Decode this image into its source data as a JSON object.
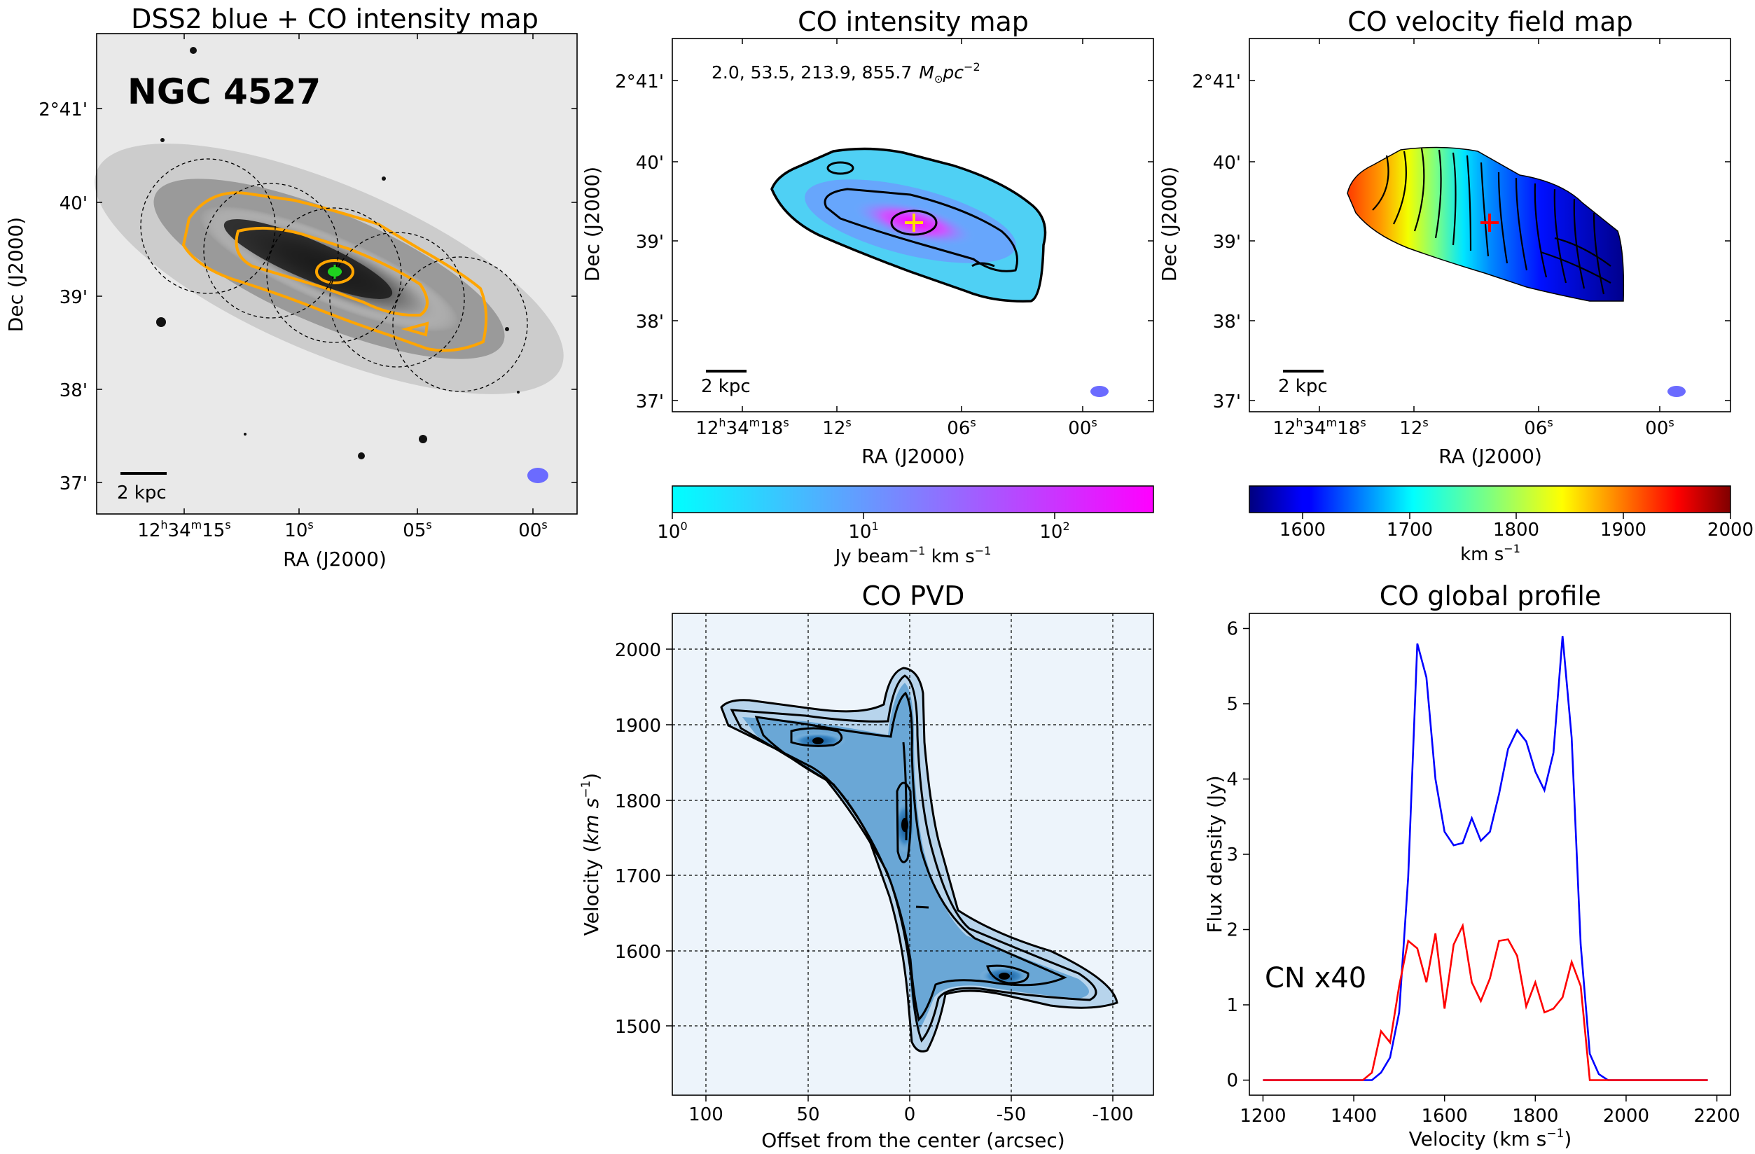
{
  "figure": {
    "galaxy_name": "NGC 4527",
    "panels": {
      "dss": {
        "title": "DSS2 blue + CO intensity map",
        "xlabel": "RA (J2000)",
        "ylabel": "Dec (J2000)",
        "xticks": [
          {
            "base": "12",
            "h": "h",
            "mid": "34",
            "m": "m",
            "rest": "15",
            "s": "s"
          },
          {
            "base": "10",
            "s": "s"
          },
          {
            "base": "05",
            "s": "s"
          },
          {
            "base": "00",
            "s": "s"
          }
        ],
        "yticks": [
          "2°41'",
          "40'",
          "39'",
          "38'",
          "37'"
        ],
        "scalebar": "2 kpc"
      },
      "mom0": {
        "title": "CO intensity map",
        "contour_levels": "2.0, 53.5, 213.9, 855.7",
        "unit_base": "M",
        "unit_sub": "⊙",
        "unit_mid": "pc",
        "unit_sup": "−2",
        "xlabel": "RA (J2000)",
        "ylabel": "Dec (J2000)",
        "xticks": [
          {
            "base": "12",
            "h": "h",
            "mid": "34",
            "m": "m",
            "rest": "18",
            "s": "s"
          },
          {
            "base": "12",
            "s": "s"
          },
          {
            "base": "06",
            "s": "s"
          },
          {
            "base": "00",
            "s": "s"
          }
        ],
        "yticks": [
          "2°41'",
          "40'",
          "39'",
          "38'",
          "37'"
        ],
        "scalebar": "2 kpc",
        "colorbar": {
          "ticks": [
            {
              "base": "10",
              "exp": "0"
            },
            {
              "base": "10",
              "exp": "1"
            },
            {
              "base": "10",
              "exp": "2"
            }
          ],
          "label_a": "Jy beam",
          "label_sup": "−1",
          "label_b": " km s",
          "label_sup2": "−1",
          "colors": [
            "#00ffff",
            "#ff00ff"
          ]
        }
      },
      "mom1": {
        "title": "CO velocity field map",
        "xlabel": "RA (J2000)",
        "ylabel": "Dec (J2000)",
        "xticks": [
          {
            "base": "12",
            "h": "h",
            "mid": "34",
            "m": "m",
            "rest": "18",
            "s": "s"
          },
          {
            "base": "12",
            "s": "s"
          },
          {
            "base": "06",
            "s": "s"
          },
          {
            "base": "00",
            "s": "s"
          }
        ],
        "yticks": [
          "2°41'",
          "40'",
          "39'",
          "38'",
          "37'"
        ],
        "scalebar": "2 kpc",
        "colorbar": {
          "ticks": [
            "1600",
            "1700",
            "1800",
            "1900",
            "2000"
          ],
          "label_a": "km s",
          "label_sup": "−1"
        }
      },
      "pvd": {
        "title": "CO PVD",
        "xlabel": "Offset from the center (arcsec)",
        "ylabel_a": "Velocity (",
        "ylabel_b": "km s",
        "ylabel_sup": "−1",
        "ylabel_c": ")",
        "xticks": [
          "100",
          "50",
          "0",
          "-50",
          "-100"
        ],
        "yticks": [
          "2000",
          "1900",
          "1800",
          "1700",
          "1600",
          "1500"
        ]
      },
      "profile": {
        "title": "CO global profile",
        "xlabel_a": "Velocity (km s",
        "xlabel_sup": "−1",
        "xlabel_b": ")",
        "ylabel": "Flux density (Jy)",
        "annotation": "CN x40",
        "xticks": [
          "1200",
          "1400",
          "1600",
          "1800",
          "2000",
          "2200"
        ],
        "yticks": [
          "0",
          "1",
          "2",
          "3",
          "4",
          "5",
          "6"
        ],
        "co_color": "#0000ff",
        "cn_color": "#ff0000"
      }
    }
  },
  "chart_data": [
    {
      "type": "line",
      "title": "CO global profile",
      "xlabel": "Velocity (km s^-1)",
      "ylabel": "Flux density (Jy)",
      "xlim": [
        1170,
        2230
      ],
      "ylim": [
        -0.2,
        6.2
      ],
      "series": [
        {
          "name": "CO",
          "color": "#0000ff",
          "x": [
            1200,
            1220,
            1240,
            1260,
            1280,
            1300,
            1320,
            1340,
            1360,
            1380,
            1400,
            1420,
            1440,
            1460,
            1480,
            1500,
            1520,
            1540,
            1560,
            1580,
            1600,
            1620,
            1640,
            1660,
            1680,
            1700,
            1720,
            1740,
            1760,
            1780,
            1800,
            1820,
            1840,
            1860,
            1880,
            1900,
            1920,
            1940,
            1960,
            1980,
            2000,
            2020,
            2040,
            2060,
            2080,
            2100,
            2120,
            2140,
            2160,
            2180
          ],
          "values": [
            0,
            0,
            0,
            0,
            0,
            0,
            0,
            0,
            0,
            0,
            0,
            0,
            0,
            0.1,
            0.3,
            0.9,
            2.7,
            5.8,
            5.35,
            4.0,
            3.3,
            3.12,
            3.15,
            3.48,
            3.18,
            3.3,
            3.8,
            4.4,
            4.65,
            4.5,
            4.1,
            3.85,
            4.35,
            5.9,
            4.55,
            1.8,
            0.35,
            0.08,
            0.0,
            0,
            0,
            0,
            0,
            0,
            0,
            0,
            0,
            0,
            0,
            0
          ]
        },
        {
          "name": "CN x40",
          "color": "#ff0000",
          "x": [
            1200,
            1220,
            1240,
            1260,
            1280,
            1300,
            1320,
            1340,
            1360,
            1380,
            1400,
            1420,
            1440,
            1460,
            1480,
            1500,
            1520,
            1540,
            1560,
            1580,
            1600,
            1620,
            1640,
            1660,
            1680,
            1700,
            1720,
            1740,
            1760,
            1780,
            1800,
            1820,
            1840,
            1860,
            1880,
            1900,
            1920,
            1940,
            1960,
            1980,
            2000,
            2020,
            2040,
            2060,
            2080,
            2100,
            2120,
            2140,
            2160,
            2180
          ],
          "values": [
            0,
            0,
            0,
            0,
            0,
            0,
            0,
            0,
            0,
            0,
            0,
            0,
            0.1,
            0.65,
            0.5,
            1.25,
            1.85,
            1.75,
            1.3,
            1.95,
            0.95,
            1.8,
            2.05,
            1.3,
            1.05,
            1.35,
            1.85,
            1.87,
            1.65,
            0.98,
            1.3,
            0.9,
            0.95,
            1.1,
            1.57,
            1.25,
            0.0,
            0.0,
            0,
            0,
            0,
            0,
            0,
            0,
            0,
            0,
            0,
            0,
            0,
            0
          ]
        }
      ]
    },
    {
      "type": "heatmap",
      "title": "CO PVD",
      "xlabel": "Offset from the center (arcsec)",
      "ylabel": "Velocity (km s^-1)",
      "xlim": [
        118,
        -120
      ],
      "ylim": [
        1405,
        2050
      ],
      "grid": true,
      "peaks": [
        {
          "offset": 50,
          "velocity": 1880
        },
        {
          "offset": 3,
          "velocity": 1765
        },
        {
          "offset": -50,
          "velocity": 1565
        }
      ]
    },
    {
      "type": "heatmap",
      "title": "CO velocity field map",
      "colorbar_range": [
        1550,
        2000
      ],
      "colorbar_label": "km s^-1"
    },
    {
      "type": "heatmap",
      "title": "CO intensity map",
      "colorbar_range": [
        1,
        300
      ],
      "colorbar_scale": "log",
      "colorbar_label": "Jy beam^-1 km s^-1"
    }
  ]
}
